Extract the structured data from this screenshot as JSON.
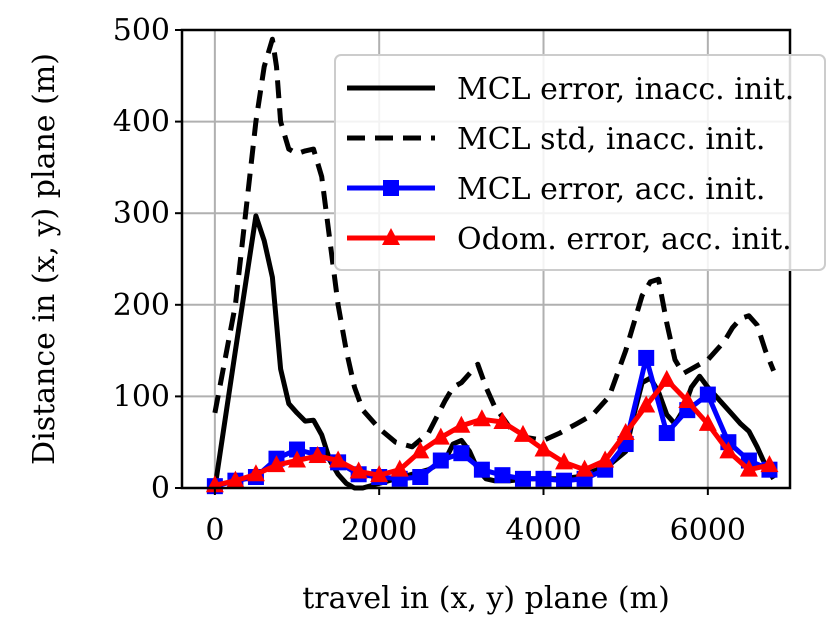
{
  "chart_data": {
    "type": "line",
    "xlabel": "travel in (x, y) plane (m)",
    "ylabel": "Distance in (x, y) plane (m)",
    "xlim": [
      -400,
      7000
    ],
    "ylim": [
      0,
      500
    ],
    "xticks": [
      0,
      2000,
      4000,
      6000
    ],
    "xtick_labels": [
      "0",
      "2000",
      "4000",
      "6000"
    ],
    "yticks": [
      0,
      100,
      200,
      300,
      400,
      500
    ],
    "ytick_labels": [
      "0",
      "100",
      "200",
      "300",
      "400",
      "500"
    ],
    "grid": true,
    "legend_position": "top-right",
    "series": [
      {
        "name": "MCL error, inacc. init.",
        "color": "#000000",
        "style": "solid",
        "marker": "none",
        "x": [
          0,
          250,
          500,
          600,
          700,
          750,
          800,
          900,
          1000,
          1100,
          1200,
          1300,
          1400,
          1500,
          1600,
          1700,
          1800,
          2000,
          2200,
          2400,
          2600,
          2800,
          2900,
          3000,
          3100,
          3200,
          3300,
          3400,
          3600,
          3800,
          4000,
          4200,
          4400,
          4600,
          4800,
          5000,
          5100,
          5200,
          5300,
          5400,
          5500,
          5600,
          5700,
          5800,
          5900,
          6000,
          6100,
          6200,
          6300,
          6400,
          6500,
          6600,
          6700,
          6800
        ],
        "y": [
          0,
          150,
          297,
          270,
          230,
          180,
          130,
          92,
          82,
          73,
          74,
          58,
          30,
          15,
          5,
          0,
          0,
          5,
          10,
          15,
          20,
          30,
          48,
          52,
          40,
          20,
          10,
          8,
          8,
          10,
          10,
          10,
          12,
          18,
          25,
          40,
          80,
          115,
          120,
          105,
          80,
          70,
          85,
          110,
          122,
          110,
          100,
          90,
          80,
          70,
          62,
          45,
          25,
          10
        ]
      },
      {
        "name": "MCL std, inacc. init.",
        "color": "#000000",
        "style": "dashed",
        "marker": "none",
        "x": [
          0,
          250,
          500,
          600,
          700,
          750,
          800,
          900,
          1000,
          1100,
          1200,
          1300,
          1400,
          1500,
          1600,
          1700,
          1800,
          2000,
          2200,
          2400,
          2600,
          2800,
          2900,
          3000,
          3100,
          3200,
          3300,
          3400,
          3600,
          3800,
          4000,
          4200,
          4400,
          4600,
          4800,
          5000,
          5100,
          5200,
          5300,
          5400,
          5500,
          5600,
          5700,
          5800,
          5900,
          6000,
          6100,
          6200,
          6300,
          6400,
          6500,
          6600,
          6700,
          6800
        ],
        "y": [
          82,
          200,
          400,
          460,
          490,
          460,
          400,
          370,
          365,
          368,
          370,
          340,
          270,
          200,
          150,
          110,
          85,
          65,
          50,
          45,
          60,
          95,
          110,
          115,
          125,
          135,
          110,
          90,
          65,
          55,
          52,
          60,
          70,
          80,
          100,
          150,
          180,
          210,
          225,
          228,
          180,
          140,
          125,
          130,
          135,
          140,
          150,
          160,
          175,
          185,
          188,
          178,
          150,
          128
        ]
      },
      {
        "name": "MCL error, acc. init.",
        "color": "#0000ff",
        "style": "solid",
        "marker": "square",
        "x": [
          0,
          250,
          500,
          750,
          1000,
          1250,
          1500,
          1750,
          2000,
          2250,
          2500,
          2750,
          3000,
          3250,
          3500,
          3750,
          4000,
          4250,
          4500,
          4750,
          5000,
          5250,
          5500,
          5750,
          6000,
          6250,
          6500,
          6750
        ],
        "y": [
          2,
          8,
          12,
          32,
          42,
          36,
          28,
          15,
          12,
          10,
          12,
          30,
          38,
          20,
          14,
          10,
          10,
          8,
          10,
          20,
          48,
          142,
          60,
          85,
          102,
          50,
          30,
          20
        ]
      },
      {
        "name": "Odom. error, acc. init.",
        "color": "#ff0000",
        "style": "solid",
        "marker": "triangle",
        "x": [
          0,
          250,
          500,
          750,
          1000,
          1250,
          1500,
          1750,
          2000,
          2250,
          2500,
          2750,
          3000,
          3250,
          3500,
          3750,
          4000,
          4250,
          4500,
          4750,
          5000,
          5250,
          5500,
          5750,
          6000,
          6250,
          6500,
          6750
        ],
        "y": [
          3,
          8,
          15,
          25,
          30,
          35,
          30,
          18,
          14,
          20,
          40,
          55,
          68,
          75,
          72,
          58,
          42,
          28,
          20,
          30,
          60,
          90,
          118,
          95,
          70,
          40,
          20,
          25
        ]
      }
    ]
  }
}
